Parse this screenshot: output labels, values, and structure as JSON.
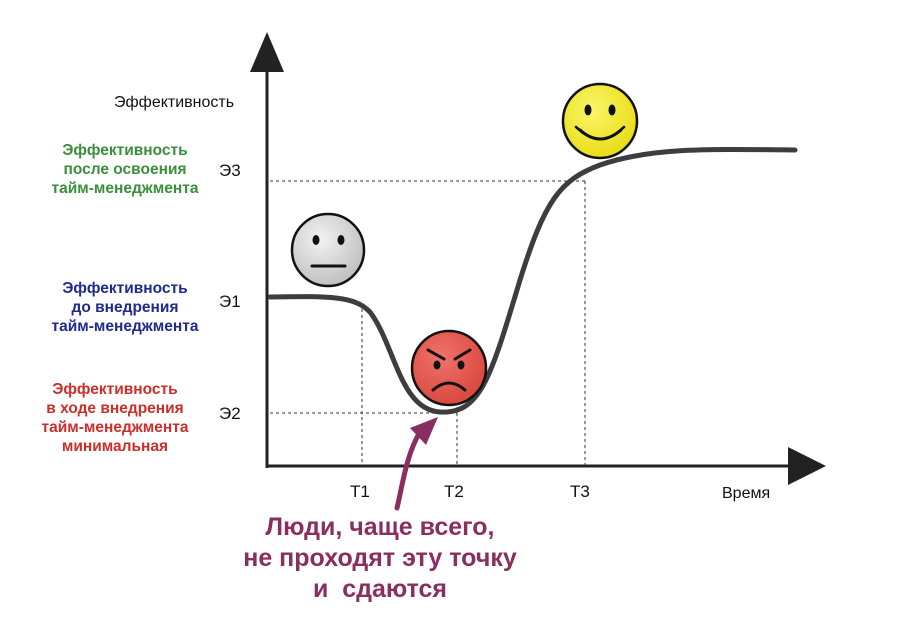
{
  "axes": {
    "y_label": "Эффективность",
    "x_label": "Время"
  },
  "y_ticks": {
    "e3": "Э3",
    "e1": "Э1",
    "e2": "Э2"
  },
  "x_ticks": {
    "t1": "Т1",
    "t2": "Т2",
    "t3": "Т3"
  },
  "labels": {
    "after": {
      "color": "#3a8f3a",
      "lines": [
        "Эффективность",
        "после освоения",
        "тайм-менеджмента"
      ]
    },
    "before": {
      "color": "#1f2a8c",
      "lines": [
        "Эффективность",
        "до внедрения",
        "тайм-менеджмента"
      ]
    },
    "during": {
      "color": "#cc2e2a",
      "lines": [
        "Эффективность",
        "в ходе внедрения",
        "тайм-менеджмента",
        "минимальная"
      ]
    }
  },
  "faces": [
    {
      "name": "neutral-face-icon",
      "color": "#d6d6d6",
      "mood": "neutral"
    },
    {
      "name": "angry-face-icon",
      "color": "#e8524a",
      "mood": "angry"
    },
    {
      "name": "happy-face-icon",
      "color": "#f2ea1a",
      "mood": "happy"
    }
  ],
  "callout": {
    "lines": [
      "Люди, чаще всего,",
      "не проходят эту точку",
      "и  сдаются"
    ],
    "color": "#8a2d60"
  },
  "curve_color": "#3d3d3d"
}
